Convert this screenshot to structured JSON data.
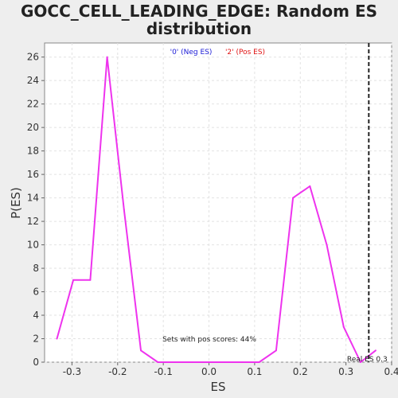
{
  "chart_data": {
    "type": "line",
    "title_line1": "GOCC_CELL_LEADING_EDGE: Random ES",
    "title_line2": "distribution",
    "xlabel": "ES",
    "ylabel": "P(ES)",
    "xlim": [
      -0.36,
      0.4
    ],
    "ylim": [
      0,
      27.2
    ],
    "x_ticks": [
      -0.3,
      -0.2,
      -0.1,
      0.0,
      0.1,
      0.2,
      0.3,
      0.4
    ],
    "x_tick_labels": [
      "-0.3",
      "-0.2",
      "-0.1",
      "0.0",
      "0.1",
      "0.2",
      "0.3",
      "0.4"
    ],
    "y_ticks": [
      0,
      2,
      4,
      6,
      8,
      10,
      12,
      14,
      16,
      18,
      20,
      22,
      24,
      26
    ],
    "y_tick_labels": [
      "0",
      "2",
      "4",
      "6",
      "8",
      "10",
      "12",
      "14",
      "16",
      "18",
      "20",
      "22",
      "24",
      "26"
    ],
    "grid": true,
    "legend": [
      {
        "label": "'0' (Neg ES)",
        "color": "#1a1ad6"
      },
      {
        "label": "'2' (Pos ES)",
        "color": "#e01414"
      }
    ],
    "series": [
      {
        "color": "#ee33ee",
        "x": [
          -0.333,
          -0.297,
          -0.26,
          -0.223,
          -0.186,
          -0.149,
          -0.112,
          -0.075,
          -0.038,
          -0.001,
          0.036,
          0.073,
          0.11,
          0.147,
          0.184,
          0.221,
          0.258,
          0.295,
          0.332,
          0.365
        ],
        "y": [
          2,
          7,
          7,
          26,
          13,
          1,
          0,
          0,
          0,
          0,
          0,
          0,
          0,
          1,
          14,
          15,
          10,
          3,
          0,
          1
        ]
      }
    ],
    "real_es": {
      "value": 0.35,
      "label": "Real ES 0.3"
    },
    "annotation": "Sets with pos scores: 44%"
  }
}
